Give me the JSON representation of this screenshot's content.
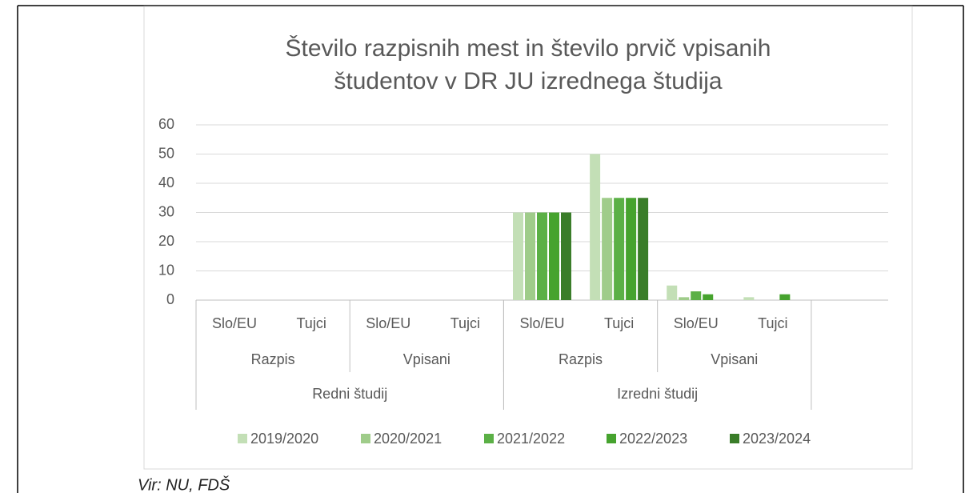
{
  "chart_data": {
    "type": "bar",
    "title": [
      "Število razpisnih mest in število prvič vpisanih",
      "študentov v DR JU izrednega študija"
    ],
    "categories": [
      "Slo/EU",
      "Tujci",
      "Slo/EU",
      "Tujci",
      "Slo/EU",
      "Tujci",
      "Slo/EU",
      "Tujci",
      null
    ],
    "level2": [
      "Razpis",
      "Vpisani",
      "Razpis",
      "Vpisani"
    ],
    "level3": [
      "Redni študij",
      "Izredni študij"
    ],
    "series": [
      {
        "name": "2019/2020",
        "color": "#c3dfb6",
        "values": [
          0,
          0,
          0,
          0,
          30,
          50,
          5,
          1,
          null
        ]
      },
      {
        "name": "2020/2021",
        "color": "#9fcc8a",
        "values": [
          0,
          0,
          0,
          0,
          30,
          35,
          1,
          0,
          null
        ]
      },
      {
        "name": "2021/2022",
        "color": "#5bb046",
        "values": [
          0,
          0,
          0,
          0,
          30,
          35,
          3,
          0,
          null
        ]
      },
      {
        "name": "2022/2023",
        "color": "#46a32e",
        "values": [
          0,
          0,
          0,
          0,
          30,
          35,
          2,
          2,
          null
        ]
      },
      {
        "name": "2023/2024",
        "color": "#3a7d29",
        "values": [
          0,
          0,
          0,
          0,
          30,
          35,
          0,
          0,
          null
        ]
      }
    ],
    "ylim": [
      0,
      60
    ],
    "yticks": [
      0,
      10,
      20,
      30,
      40,
      50,
      60
    ],
    "grid": true,
    "legend": "bottom",
    "source": "Vir: NU, FDŠ"
  }
}
